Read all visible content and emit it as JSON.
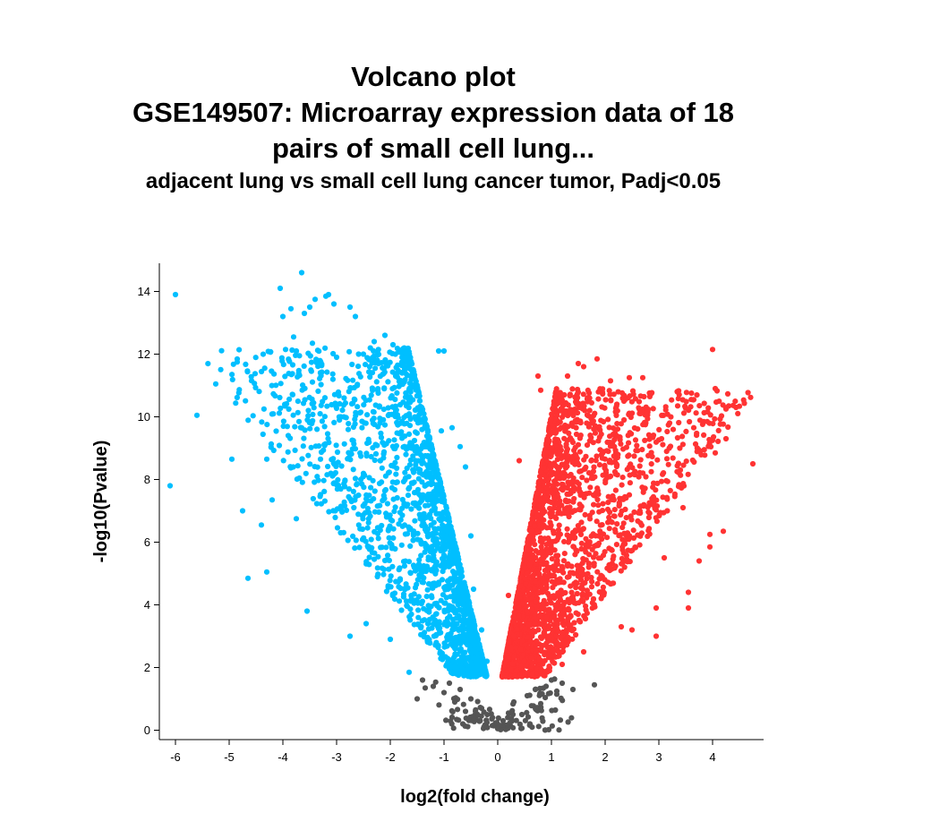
{
  "title_lines": [
    "Volcano plot",
    "GSE149507: Microarray expression data of 18",
    "pairs of small cell lung..."
  ],
  "subtitle": "adjacent lung vs small cell lung cancer tumor, Padj<0.05",
  "chart_data": {
    "type": "scatter",
    "xlabel": "log2(fold change)",
    "ylabel": "-log10(Pvalue)",
    "xlim": [
      -6.3,
      4.95
    ],
    "ylim": [
      -0.3,
      14.9
    ],
    "x_ticks": [
      -6,
      -5,
      -4,
      -3,
      -2,
      -1,
      0,
      1,
      2,
      3,
      4
    ],
    "y_ticks": [
      0,
      2,
      4,
      6,
      8,
      10,
      12,
      14
    ],
    "grid": false,
    "legend": "none",
    "colors": {
      "down": "#00bfff",
      "up": "#ff3333",
      "not_significant": "#555555"
    },
    "series": [
      {
        "key": "down",
        "color": "#00bfff",
        "points": [
          [
            -6.1,
            7.8
          ],
          [
            -6.0,
            13.9
          ],
          [
            -5.6,
            10.05
          ],
          [
            -5.25,
            11.05
          ],
          [
            -4.95,
            8.65
          ],
          [
            -4.85,
            11.75
          ],
          [
            -4.75,
            7.0
          ],
          [
            -4.65,
            4.85
          ],
          [
            -4.4,
            6.55
          ],
          [
            -4.3,
            8.65
          ],
          [
            -4.3,
            5.05
          ],
          [
            -4.2,
            7.35
          ],
          [
            -4.05,
            14.1
          ],
          [
            -4.0,
            13.2
          ],
          [
            -3.95,
            12.15
          ],
          [
            -3.9,
            9.4
          ],
          [
            -3.85,
            13.45
          ],
          [
            -3.8,
            12.55
          ],
          [
            -3.75,
            6.75
          ],
          [
            -3.75,
            12.1
          ],
          [
            -3.7,
            9.85
          ],
          [
            -3.65,
            14.6
          ],
          [
            -3.6,
            13.3
          ],
          [
            -3.55,
            3.8
          ],
          [
            -3.5,
            13.5
          ],
          [
            -3.45,
            12.35
          ],
          [
            -3.4,
            13.75
          ],
          [
            -3.3,
            8.65
          ],
          [
            -3.2,
            13.85
          ],
          [
            -3.15,
            13.9
          ],
          [
            -3.05,
            13.6
          ],
          [
            -3.0,
            11.9
          ],
          [
            -2.75,
            13.5
          ],
          [
            -2.65,
            13.2
          ],
          [
            -2.55,
            10.15
          ],
          [
            -2.45,
            3.4
          ],
          [
            -2.3,
            12.4
          ],
          [
            -2.1,
            12.6
          ],
          [
            -1.95,
            12.3
          ],
          [
            -1.9,
            11.3
          ],
          [
            -1.75,
            12.1
          ],
          [
            -1.7,
            10.35
          ],
          [
            -1.1,
            12.1
          ],
          [
            -1.05,
            9.55
          ],
          [
            -1.0,
            12.1
          ],
          [
            -0.85,
            9.65
          ],
          [
            -0.7,
            9.05
          ],
          [
            -0.6,
            8.4
          ],
          [
            -0.9,
            2.0
          ],
          [
            -1.3,
            3.4
          ],
          [
            -1.65,
            1.85
          ],
          [
            -2.0,
            2.9
          ],
          [
            -2.75,
            3.0
          ],
          [
            -0.45,
            4.5
          ],
          [
            -0.5,
            6.2
          ],
          [
            -0.35,
            2.6
          ],
          [
            -0.3,
            3.2
          ],
          [
            -0.25,
            1.9
          ],
          [
            -0.2,
            2.2
          ],
          [
            -0.55,
            1.8
          ]
        ]
      },
      {
        "key": "up",
        "color": "#ff3333",
        "points": [
          [
            4.75,
            8.5
          ],
          [
            4.25,
            9.3
          ],
          [
            4.2,
            6.35
          ],
          [
            4.05,
            8.85
          ],
          [
            4.0,
            9.25
          ],
          [
            3.95,
            5.85
          ],
          [
            3.95,
            6.25
          ],
          [
            3.9,
            9.85
          ],
          [
            3.75,
            5.4
          ],
          [
            3.65,
            9.65
          ],
          [
            3.55,
            3.9
          ],
          [
            3.55,
            4.4
          ],
          [
            3.45,
            7.1
          ],
          [
            3.4,
            8.3
          ],
          [
            3.35,
            10.35
          ],
          [
            3.2,
            9.8
          ],
          [
            3.1,
            5.5
          ],
          [
            3.05,
            9.3
          ],
          [
            2.95,
            3.0
          ],
          [
            2.95,
            3.9
          ],
          [
            2.7,
            11.25
          ],
          [
            2.45,
            11.25
          ],
          [
            2.35,
            10.5
          ],
          [
            2.1,
            11.15
          ],
          [
            1.85,
            11.85
          ],
          [
            1.6,
            11.6
          ],
          [
            1.5,
            11.7
          ],
          [
            1.3,
            11.3
          ],
          [
            4.0,
            12.15
          ],
          [
            2.5,
            3.2
          ],
          [
            2.3,
            3.3
          ],
          [
            1.95,
            4.3
          ],
          [
            1.6,
            2.5
          ],
          [
            1.2,
            2.1
          ],
          [
            0.95,
            3.0
          ],
          [
            0.8,
            10.85
          ],
          [
            0.75,
            11.3
          ],
          [
            0.5,
            5.2
          ],
          [
            0.4,
            8.6
          ],
          [
            0.3,
            3.0
          ],
          [
            0.25,
            2.6
          ],
          [
            0.2,
            4.3
          ],
          [
            0.15,
            2.2
          ],
          [
            0.1,
            1.8
          ],
          [
            0.35,
            1.9
          ]
        ]
      },
      {
        "key": "not_significant",
        "color": "#555555",
        "points": [
          [
            -1.4,
            1.6
          ],
          [
            -1.35,
            1.35
          ],
          [
            -1.2,
            1.4
          ],
          [
            -1.0,
            1.2
          ],
          [
            -0.9,
            1.5
          ],
          [
            -0.8,
            0.9
          ],
          [
            -0.7,
            1.3
          ],
          [
            -0.6,
            0.6
          ],
          [
            -0.5,
            1.0
          ],
          [
            -0.45,
            0.4
          ],
          [
            -0.3,
            0.7
          ],
          [
            -0.2,
            0.25
          ],
          [
            -0.1,
            0.15
          ],
          [
            0.0,
            0.05
          ],
          [
            0.1,
            0.3
          ],
          [
            0.2,
            0.55
          ],
          [
            0.3,
            0.9
          ],
          [
            0.45,
            0.5
          ],
          [
            0.55,
            1.1
          ],
          [
            0.7,
            1.3
          ],
          [
            0.8,
            0.85
          ],
          [
            0.9,
            1.4
          ],
          [
            1.1,
            1.15
          ],
          [
            1.2,
            1.5
          ],
          [
            1.4,
            1.3
          ],
          [
            1.8,
            1.45
          ],
          [
            1.0,
            1.6
          ],
          [
            0.6,
            0.2
          ],
          [
            -0.65,
            0.2
          ],
          [
            -1.5,
            1.0
          ]
        ]
      }
    ]
  }
}
